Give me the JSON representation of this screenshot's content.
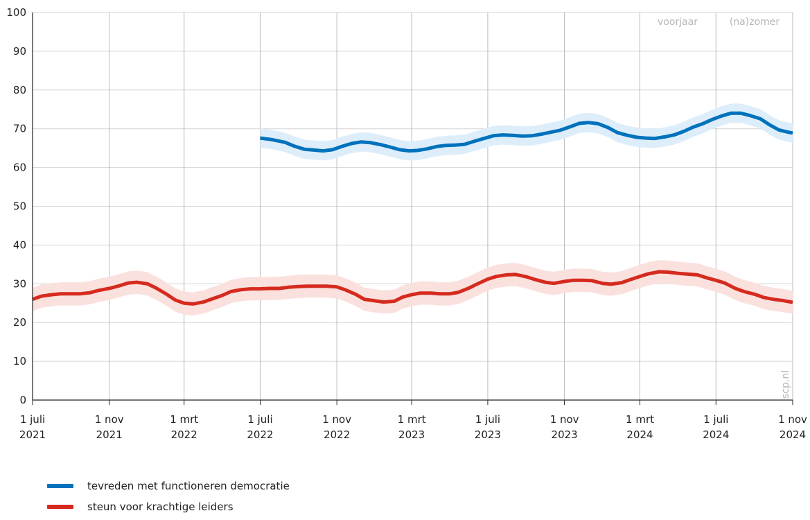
{
  "chart_data": {
    "type": "line",
    "title": "",
    "xlabel": "",
    "ylabel": "",
    "ylim": [
      0,
      100
    ],
    "yticks": [
      0,
      10,
      20,
      30,
      40,
      50,
      60,
      70,
      80,
      90,
      100
    ],
    "xlim": [
      "2021-07-01",
      "2024-11-01"
    ],
    "xticks": [
      {
        "date": "2021-07-01",
        "line1": "1 juli",
        "line2": "2021"
      },
      {
        "date": "2021-11-01",
        "line1": "1 nov",
        "line2": "2021"
      },
      {
        "date": "2022-03-01",
        "line1": "1 mrt",
        "line2": "2022"
      },
      {
        "date": "2022-07-01",
        "line1": "1 juli",
        "line2": "2022"
      },
      {
        "date": "2022-11-01",
        "line1": "1 nov",
        "line2": "2022"
      },
      {
        "date": "2023-03-01",
        "line1": "1 mrt",
        "line2": "2023"
      },
      {
        "date": "2023-07-01",
        "line1": "1 juli",
        "line2": "2023"
      },
      {
        "date": "2023-11-01",
        "line1": "1 nov",
        "line2": "2023"
      },
      {
        "date": "2024-03-01",
        "line1": "1 mrt",
        "line2": "2024"
      },
      {
        "date": "2024-07-01",
        "line1": "1 juli",
        "line2": "2024"
      },
      {
        "date": "2024-11-01",
        "line1": "1 nov",
        "line2": "2024"
      }
    ],
    "grid": true,
    "legend_position": "bottom-left",
    "annotations": {
      "season_left": "voorjaar",
      "season_right": "(na)zomer",
      "source": "scp.nl"
    },
    "series": [
      {
        "name": "tevreden met functioneren democratie",
        "color": "#0072bc",
        "band_color": "#ddeefa",
        "band_halfwidth": 2.5,
        "points": [
          [
            "2022-07-01",
            67.6
          ],
          [
            "2022-07-20",
            67.2
          ],
          [
            "2022-08-10",
            66.5
          ],
          [
            "2022-08-25",
            65.5
          ],
          [
            "2022-09-10",
            64.7
          ],
          [
            "2022-09-25",
            64.5
          ],
          [
            "2022-10-10",
            64.3
          ],
          [
            "2022-10-25",
            64.6
          ],
          [
            "2022-11-10",
            65.5
          ],
          [
            "2022-11-25",
            66.2
          ],
          [
            "2022-12-10",
            66.6
          ],
          [
            "2022-12-25",
            66.4
          ],
          [
            "2023-01-10",
            65.9
          ],
          [
            "2023-01-25",
            65.3
          ],
          [
            "2023-02-10",
            64.6
          ],
          [
            "2023-02-25",
            64.3
          ],
          [
            "2023-03-10",
            64.4
          ],
          [
            "2023-03-25",
            64.8
          ],
          [
            "2023-04-10",
            65.4
          ],
          [
            "2023-04-25",
            65.7
          ],
          [
            "2023-05-10",
            65.8
          ],
          [
            "2023-05-25",
            66.0
          ],
          [
            "2023-06-10",
            66.8
          ],
          [
            "2023-06-25",
            67.5
          ],
          [
            "2023-07-10",
            68.2
          ],
          [
            "2023-07-25",
            68.4
          ],
          [
            "2023-08-10",
            68.3
          ],
          [
            "2023-08-25",
            68.1
          ],
          [
            "2023-09-10",
            68.2
          ],
          [
            "2023-09-25",
            68.6
          ],
          [
            "2023-10-10",
            69.1
          ],
          [
            "2023-10-25",
            69.6
          ],
          [
            "2023-11-10",
            70.5
          ],
          [
            "2023-11-25",
            71.4
          ],
          [
            "2023-12-10",
            71.6
          ],
          [
            "2023-12-25",
            71.3
          ],
          [
            "2024-01-10",
            70.3
          ],
          [
            "2024-01-25",
            69.0
          ],
          [
            "2024-02-10",
            68.3
          ],
          [
            "2024-02-25",
            67.8
          ],
          [
            "2024-03-10",
            67.6
          ],
          [
            "2024-03-25",
            67.5
          ],
          [
            "2024-04-10",
            67.9
          ],
          [
            "2024-04-25",
            68.4
          ],
          [
            "2024-05-10",
            69.3
          ],
          [
            "2024-05-25",
            70.4
          ],
          [
            "2024-06-10",
            71.3
          ],
          [
            "2024-06-25",
            72.4
          ],
          [
            "2024-07-10",
            73.3
          ],
          [
            "2024-07-25",
            74.0
          ],
          [
            "2024-08-10",
            74.0
          ],
          [
            "2024-08-25",
            73.4
          ],
          [
            "2024-09-10",
            72.6
          ],
          [
            "2024-09-25",
            71.0
          ],
          [
            "2024-10-10",
            69.7
          ],
          [
            "2024-10-25",
            69.1
          ],
          [
            "2024-11-01",
            68.9
          ]
        ]
      },
      {
        "name": "steun voor krachtige leiders",
        "color": "#d52b1e",
        "band_color": "#fae1de",
        "band_halfwidth": 3.0,
        "points": [
          [
            "2021-07-01",
            26.0
          ],
          [
            "2021-07-15",
            26.8
          ],
          [
            "2021-08-01",
            27.2
          ],
          [
            "2021-08-15",
            27.4
          ],
          [
            "2021-09-01",
            27.4
          ],
          [
            "2021-09-15",
            27.4
          ],
          [
            "2021-10-01",
            27.7
          ],
          [
            "2021-10-15",
            28.3
          ],
          [
            "2021-11-01",
            28.8
          ],
          [
            "2021-11-15",
            29.4
          ],
          [
            "2021-12-01",
            30.2
          ],
          [
            "2021-12-15",
            30.4
          ],
          [
            "2022-01-01",
            30.0
          ],
          [
            "2022-01-15",
            28.9
          ],
          [
            "2022-02-01",
            27.3
          ],
          [
            "2022-02-15",
            25.8
          ],
          [
            "2022-03-01",
            25.0
          ],
          [
            "2022-03-15",
            24.8
          ],
          [
            "2022-04-01",
            25.3
          ],
          [
            "2022-04-15",
            26.1
          ],
          [
            "2022-05-01",
            27.0
          ],
          [
            "2022-05-15",
            28.0
          ],
          [
            "2022-06-01",
            28.5
          ],
          [
            "2022-06-15",
            28.7
          ],
          [
            "2022-07-01",
            28.7
          ],
          [
            "2022-07-15",
            28.8
          ],
          [
            "2022-08-01",
            28.8
          ],
          [
            "2022-08-15",
            29.1
          ],
          [
            "2022-09-01",
            29.3
          ],
          [
            "2022-09-15",
            29.4
          ],
          [
            "2022-10-01",
            29.4
          ],
          [
            "2022-10-15",
            29.4
          ],
          [
            "2022-11-01",
            29.2
          ],
          [
            "2022-11-15",
            28.4
          ],
          [
            "2022-12-01",
            27.3
          ],
          [
            "2022-12-15",
            26.0
          ],
          [
            "2023-01-01",
            25.6
          ],
          [
            "2023-01-15",
            25.3
          ],
          [
            "2023-02-01",
            25.5
          ],
          [
            "2023-02-15",
            26.6
          ],
          [
            "2023-03-01",
            27.2
          ],
          [
            "2023-03-15",
            27.6
          ],
          [
            "2023-04-01",
            27.6
          ],
          [
            "2023-04-15",
            27.4
          ],
          [
            "2023-05-01",
            27.4
          ],
          [
            "2023-05-15",
            27.8
          ],
          [
            "2023-06-01",
            28.9
          ],
          [
            "2023-06-15",
            30.0
          ],
          [
            "2023-07-01",
            31.2
          ],
          [
            "2023-07-15",
            31.9
          ],
          [
            "2023-08-01",
            32.3
          ],
          [
            "2023-08-15",
            32.4
          ],
          [
            "2023-09-01",
            31.8
          ],
          [
            "2023-09-15",
            31.1
          ],
          [
            "2023-10-01",
            30.4
          ],
          [
            "2023-10-15",
            30.1
          ],
          [
            "2023-11-01",
            30.6
          ],
          [
            "2023-11-15",
            30.9
          ],
          [
            "2023-12-01",
            30.9
          ],
          [
            "2023-12-15",
            30.8
          ],
          [
            "2024-01-01",
            30.1
          ],
          [
            "2024-01-15",
            29.9
          ],
          [
            "2024-02-01",
            30.3
          ],
          [
            "2024-02-15",
            31.1
          ],
          [
            "2024-03-01",
            31.9
          ],
          [
            "2024-03-15",
            32.6
          ],
          [
            "2024-04-01",
            33.1
          ],
          [
            "2024-04-15",
            33.0
          ],
          [
            "2024-05-01",
            32.7
          ],
          [
            "2024-05-15",
            32.5
          ],
          [
            "2024-06-01",
            32.3
          ],
          [
            "2024-06-15",
            31.6
          ],
          [
            "2024-07-01",
            30.9
          ],
          [
            "2024-07-15",
            30.2
          ],
          [
            "2024-08-01",
            28.8
          ],
          [
            "2024-08-15",
            28.0
          ],
          [
            "2024-09-01",
            27.3
          ],
          [
            "2024-09-15",
            26.5
          ],
          [
            "2024-10-01",
            26.0
          ],
          [
            "2024-10-15",
            25.7
          ],
          [
            "2024-11-01",
            25.2
          ]
        ]
      }
    ]
  }
}
